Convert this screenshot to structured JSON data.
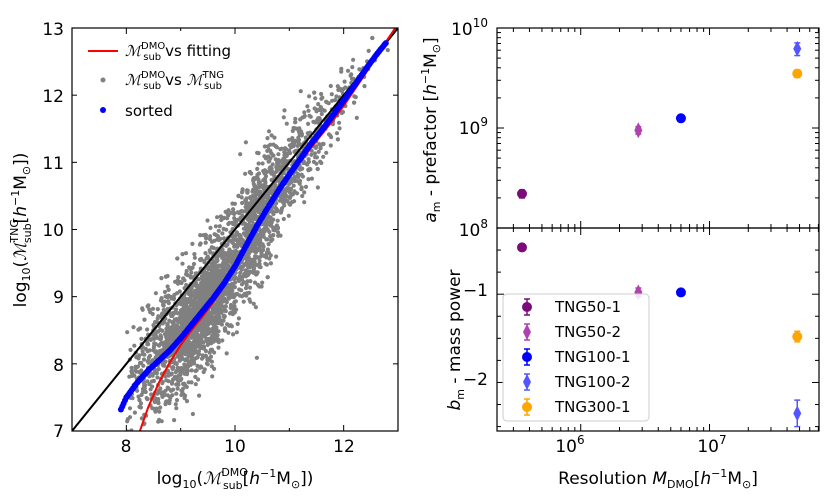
{
  "chart_data": [
    {
      "id": "scatter",
      "type": "scatter",
      "xlabel": "log10(Msub^DMO [h^-1 M⊙])",
      "ylabel": "log10(Msub^TNG [h^-1 M⊙])",
      "xlim": [
        7,
        13
      ],
      "ylim": [
        7,
        13
      ],
      "xticks": [
        8,
        10,
        12
      ],
      "yticks": [
        7,
        8,
        9,
        10,
        11,
        12,
        13
      ],
      "legend": [
        "ℳsub^DMO vs fitting",
        "ℳsub^DMO vs ℳsub^TNG",
        "sorted"
      ],
      "colors": {
        "fit": "#ff0000",
        "scatter": "#808080",
        "sorted": "#0000ff",
        "identity": "#000000"
      },
      "identity_line": [
        [
          7,
          7
        ],
        [
          13,
          13
        ]
      ],
      "fit_curve": [
        [
          8.25,
          7.0
        ],
        [
          8.4,
          7.35
        ],
        [
          8.6,
          7.72
        ],
        [
          8.8,
          8.02
        ],
        [
          9.0,
          8.28
        ],
        [
          9.2,
          8.5
        ],
        [
          9.4,
          8.7
        ],
        [
          9.6,
          8.92
        ],
        [
          9.8,
          9.15
        ],
        [
          10.0,
          9.42
        ],
        [
          10.2,
          9.72
        ],
        [
          10.4,
          10.02
        ],
        [
          10.6,
          10.3
        ],
        [
          10.8,
          10.55
        ],
        [
          11.0,
          10.78
        ],
        [
          11.2,
          11.0
        ],
        [
          11.4,
          11.22
        ],
        [
          11.6,
          11.42
        ],
        [
          11.8,
          11.62
        ],
        [
          12.0,
          11.84
        ],
        [
          12.2,
          12.08
        ],
        [
          12.4,
          12.32
        ],
        [
          12.6,
          12.58
        ],
        [
          12.8,
          12.82
        ],
        [
          12.95,
          13.0
        ]
      ],
      "sorted_curve": [
        [
          7.9,
          7.32
        ],
        [
          8.0,
          7.5
        ],
        [
          8.2,
          7.72
        ],
        [
          8.4,
          7.9
        ],
        [
          8.6,
          8.05
        ],
        [
          8.8,
          8.2
        ],
        [
          9.0,
          8.38
        ],
        [
          9.2,
          8.58
        ],
        [
          9.4,
          8.78
        ],
        [
          9.6,
          8.98
        ],
        [
          9.8,
          9.2
        ],
        [
          10.0,
          9.45
        ],
        [
          10.2,
          9.75
        ],
        [
          10.4,
          10.05
        ],
        [
          10.6,
          10.32
        ],
        [
          10.8,
          10.58
        ],
        [
          11.0,
          10.82
        ],
        [
          11.2,
          11.05
        ],
        [
          11.4,
          11.28
        ],
        [
          11.6,
          11.48
        ],
        [
          11.8,
          11.7
        ],
        [
          12.0,
          11.92
        ],
        [
          12.2,
          12.15
        ],
        [
          12.4,
          12.38
        ],
        [
          12.6,
          12.6
        ],
        [
          12.8,
          12.8
        ]
      ]
    },
    {
      "id": "prefactor",
      "type": "scatter",
      "ylabel": "a_m - prefactor [h^-1 M⊙]",
      "yscale": "log",
      "ylim_exp": [
        8,
        10
      ],
      "ytick_exps": [
        8,
        9,
        10
      ],
      "series": [
        {
          "name": "TNG50-1",
          "x": 350000.0,
          "y": 220000000.0,
          "yerr": 20000000.0,
          "marker": "circle",
          "color": "#7b0a7b"
        },
        {
          "name": "TNG50-2",
          "x": 2800000.0,
          "y": 950000000.0,
          "yerr": 80000000.0,
          "marker": "diamond",
          "color": "#b041b0"
        },
        {
          "name": "TNG100-1",
          "x": 6000000.0,
          "y": 1250000000.0,
          "yerr": 80000000.0,
          "marker": "circle",
          "color": "#0000ff"
        },
        {
          "name": "TNG100-2",
          "x": 48000000.0,
          "y": 6200000000.0,
          "yerr": 900000000.0,
          "marker": "diamond",
          "color": "#5555ff"
        },
        {
          "name": "TNG300-1",
          "x": 48000000.0,
          "y": 3500000000.0,
          "yerr": 300000000.0,
          "marker": "circle",
          "color": "#ffa500"
        }
      ]
    },
    {
      "id": "power",
      "type": "scatter",
      "xlabel": "Resolution M_DMO [h^-1 M⊙]",
      "ylabel": "b_m - mass power",
      "xscale": "log",
      "xlim_exp": [
        5.35,
        7.85
      ],
      "xtick_exps": [
        6,
        7
      ],
      "ylim": [
        -2.55,
        -0.25
      ],
      "yticks": [
        -1,
        -2
      ],
      "series": [
        {
          "name": "TNG50-1",
          "x": 350000.0,
          "y": -0.47,
          "yerr": 0.02,
          "marker": "circle",
          "color": "#7b0a7b"
        },
        {
          "name": "TNG50-2",
          "x": 2800000.0,
          "y": -0.98,
          "yerr": 0.05,
          "marker": "diamond",
          "color": "#b041b0"
        },
        {
          "name": "TNG100-1",
          "x": 6000000.0,
          "y": -0.98,
          "yerr": 0.03,
          "marker": "circle",
          "color": "#0000ff"
        },
        {
          "name": "TNG100-2",
          "x": 48000000.0,
          "y": -2.35,
          "yerr": 0.15,
          "marker": "diamond",
          "color": "#5555ff"
        },
        {
          "name": "TNG300-1",
          "x": 48000000.0,
          "y": -1.48,
          "yerr": 0.06,
          "marker": "circle",
          "color": "#ffa500"
        }
      ]
    }
  ],
  "text": {
    "left_y_tick_labels": [
      "7",
      "8",
      "9",
      "10",
      "11",
      "12",
      "13"
    ],
    "left_x_tick_labels": [
      "8",
      "10",
      "12"
    ],
    "prefactor_tick_base": "10",
    "prefactor_tick_exps": [
      "8",
      "9",
      "10"
    ],
    "power_y_tick_labels": [
      "−1",
      "−2"
    ],
    "power_x_tick_exps": [
      "6",
      "7"
    ],
    "legend_power": [
      "TNG50-1",
      "TNG50-2",
      "TNG100-1",
      "TNG100-2",
      "TNG300-1"
    ]
  }
}
